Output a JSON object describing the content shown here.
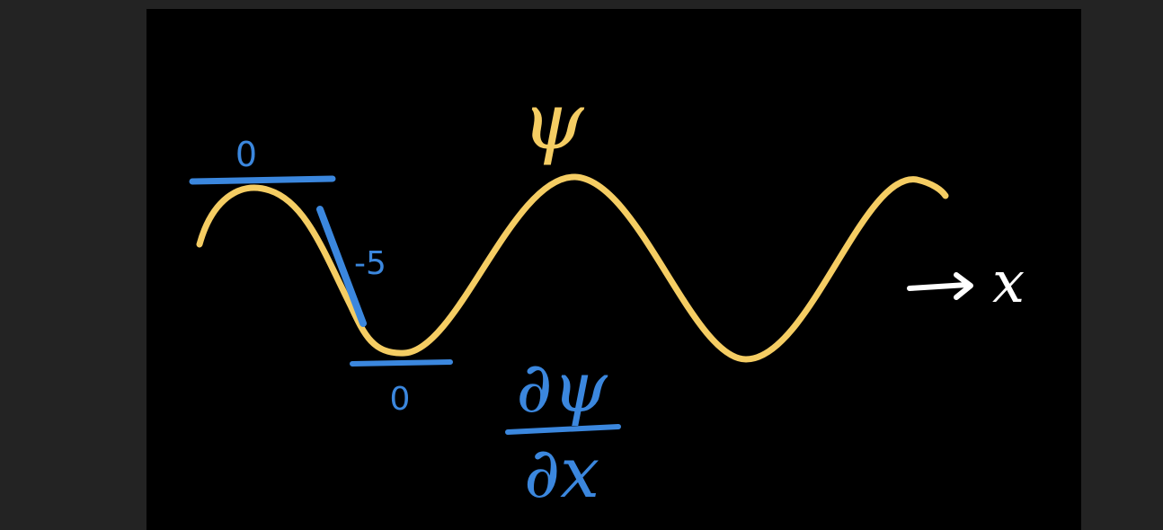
{
  "colors": {
    "background": "#232323",
    "board": "#000000",
    "wave": "#f5cd63",
    "annotation": "#3b87de",
    "axis": "#ffffff"
  },
  "labels": {
    "wave_symbol": "ψ",
    "slope_top": "0",
    "slope_middle": "-5",
    "slope_bottom": "0",
    "derivative_numerator": "∂ψ",
    "derivative_denominator": "∂x",
    "axis_arrow": "→",
    "axis_variable": "x"
  }
}
